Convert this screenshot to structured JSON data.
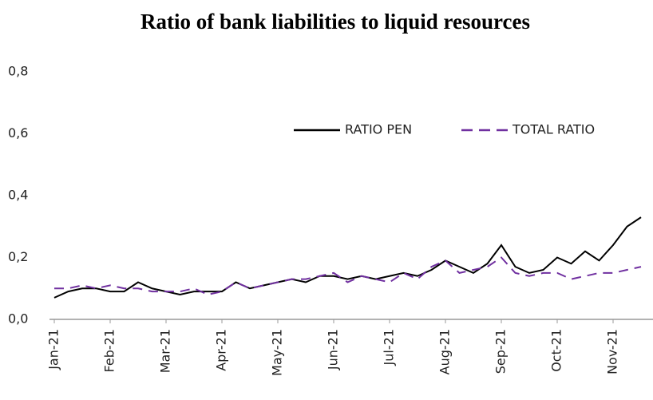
{
  "chart_data": {
    "type": "line",
    "title": "Ratio of bank liabilities to liquid resources",
    "categories": [
      "Jan-21",
      null,
      null,
      null,
      "Feb-21",
      null,
      null,
      null,
      "Mar-21",
      null,
      null,
      null,
      "Apr-21",
      null,
      null,
      null,
      "May-21",
      null,
      null,
      null,
      "Jun-21",
      null,
      null,
      null,
      "Jul-21",
      null,
      null,
      null,
      "Aug-21",
      null,
      null,
      null,
      "Sep-21",
      null,
      null,
      null,
      "Oct-21",
      null,
      null,
      null,
      "Nov-21",
      null,
      null
    ],
    "series": [
      {
        "name": "RATIO PEN",
        "color": "#000000",
        "style": "solid",
        "values": [
          0.07,
          0.09,
          0.1,
          0.1,
          0.09,
          0.09,
          0.12,
          0.1,
          0.09,
          0.08,
          0.09,
          0.09,
          0.09,
          0.12,
          0.1,
          0.11,
          0.12,
          0.13,
          0.12,
          0.14,
          0.14,
          0.13,
          0.14,
          0.13,
          0.14,
          0.15,
          0.14,
          0.16,
          0.19,
          0.17,
          0.15,
          0.18,
          0.24,
          0.17,
          0.15,
          0.16,
          0.2,
          0.18,
          0.22,
          0.19,
          0.24,
          0.3,
          0.33
        ]
      },
      {
        "name": "TOTAL RATIO",
        "color": "#7030a0",
        "style": "dashed",
        "values": [
          0.1,
          0.1,
          0.11,
          0.1,
          0.11,
          0.1,
          0.1,
          0.09,
          0.09,
          0.09,
          0.1,
          0.08,
          0.09,
          0.12,
          0.1,
          0.11,
          0.12,
          0.13,
          0.13,
          0.14,
          0.15,
          0.12,
          0.14,
          0.13,
          0.12,
          0.15,
          0.13,
          0.17,
          0.19,
          0.15,
          0.16,
          0.17,
          0.2,
          0.15,
          0.14,
          0.15,
          0.15,
          0.13,
          0.14,
          0.15,
          0.15,
          0.16,
          0.17
        ]
      }
    ],
    "ylim": [
      0,
      0.8
    ],
    "yticks": [
      {
        "value": 0,
        "label": "0,0"
      },
      {
        "value": 0.2,
        "label": "0,2"
      },
      {
        "value": 0.4,
        "label": "0,4"
      },
      {
        "value": 0.6,
        "label": "0,6"
      },
      {
        "value": 0.8,
        "label": "0,8"
      }
    ],
    "grid": false,
    "legend": "top-right"
  }
}
